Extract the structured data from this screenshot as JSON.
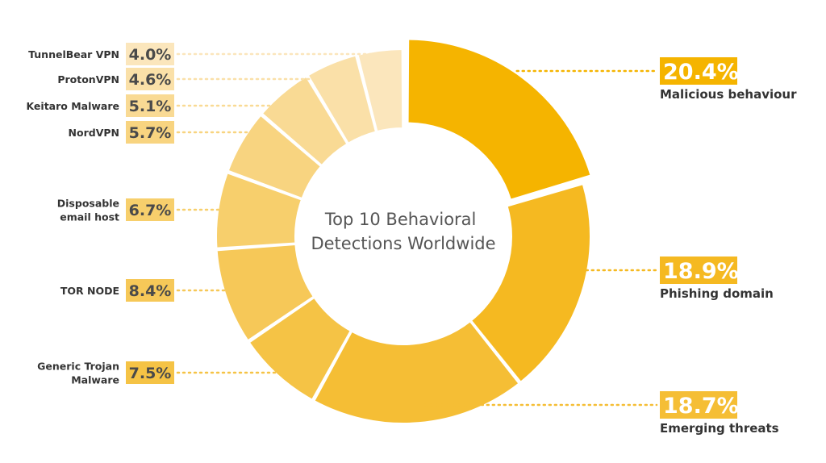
{
  "chart_data": {
    "type": "pie",
    "variant": "donut",
    "title": "Top 10 Behavioral Detections Worldwide",
    "unit": "%",
    "slices": [
      {
        "label": "Malicious behaviour",
        "value": 20.4,
        "display": "20.4%",
        "color": "#F5B400",
        "side": "right"
      },
      {
        "label": "Phishing domain",
        "value": 18.9,
        "display": "18.9%",
        "color": "#F5B921",
        "side": "right"
      },
      {
        "label": "Emerging threats",
        "value": 18.7,
        "display": "18.7%",
        "color": "#F5BE35",
        "side": "right"
      },
      {
        "label": "Generic Trojan Malware",
        "value": 7.5,
        "display": "7.5%",
        "color": "#F5C345",
        "side": "left"
      },
      {
        "label": "TOR NODE",
        "value": 8.4,
        "display": "8.4%",
        "color": "#F6C858",
        "side": "left"
      },
      {
        "label": "Disposable email host",
        "value": 6.7,
        "display": "6.7%",
        "color": "#F7CF6C",
        "side": "left"
      },
      {
        "label": "NordVPN",
        "value": 5.7,
        "display": "5.7%",
        "color": "#F8D480",
        "side": "left"
      },
      {
        "label": "Keitaro Malware",
        "value": 5.1,
        "display": "5.1%",
        "color": "#F9DA94",
        "side": "left"
      },
      {
        "label": "ProtonVPN",
        "value": 4.6,
        "display": "4.6%",
        "color": "#FAE0A8",
        "side": "left"
      },
      {
        "label": "TunnelBear VPN",
        "value": 4.0,
        "display": "4.0%",
        "color": "#FBE6BC",
        "side": "left"
      }
    ]
  }
}
